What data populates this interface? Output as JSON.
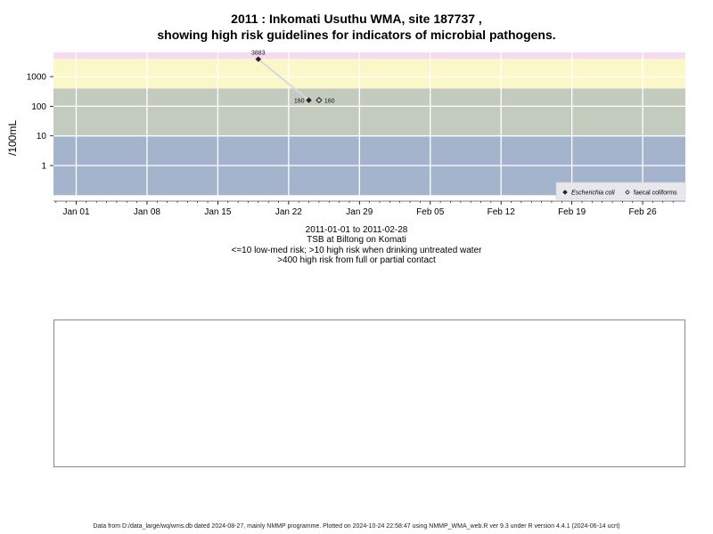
{
  "title_line1": "2011 : Inkomati Usuthu WMA, site 187737 ,",
  "title_line2": "showing high risk guidelines for indicators of microbial pathogens.",
  "subtitle": {
    "date_range": "2011-01-01 to 2011-02-28",
    "site_name": "TSB at Biltong on Komati",
    "note1": "<=10 low-med risk; >10 high risk when drinking untreated water",
    "note2": ">400 high risk from full or partial contact"
  },
  "footer": "Data from D:/data_large/wq/wms.db dated 2024-08-27, mainly NMMP programme. Plotted on 2024-10-24 22:58:47 using NMMP_WMA_web.R ver 9.3 under R version 4.4.1 (2024-06-14 ucrt)",
  "colors": {
    "band_low": "#a3b4cc",
    "band_high": "#c3cbbf",
    "band_contact": "#fbf7c8",
    "band_top": "#f7d9f3",
    "grid": "#ffffff",
    "line": "#d9d9d9",
    "point": "#222222"
  },
  "chart_data": {
    "type": "scatter",
    "ylabel": "/100mL",
    "y_scale": "log10",
    "y_ticks": [
      1,
      10,
      100,
      1000
    ],
    "y_tick_labels": [
      "1",
      "10",
      "100",
      "1000"
    ],
    "x_ticks": [
      "2011-01-01",
      "2011-01-08",
      "2011-01-15",
      "2011-01-22",
      "2011-01-29",
      "2011-02-05",
      "2011-02-12",
      "2011-02-19",
      "2011-02-26"
    ],
    "x_tick_labels": [
      "Jan 01",
      "Jan 08",
      "Jan 15",
      "Jan 22",
      "Jan 29",
      "Feb 05",
      "Feb 12",
      "Feb 19",
      "Feb 26"
    ],
    "x_range": [
      "2010-12-29",
      "2011-03-01"
    ],
    "guideline_bands": [
      {
        "from": 0.1,
        "to": 10,
        "risk": "low-med"
      },
      {
        "from": 10,
        "to": 400,
        "risk": "high risk drinking untreated water"
      },
      {
        "from": 400,
        "to": 4000,
        "risk": "high risk full or partial contact"
      }
    ],
    "series": [
      {
        "name": "Escherichia coli",
        "marker": "filled-diamond",
        "points": [
          {
            "x": "2011-01-19",
            "y": 3883,
            "label": "3883"
          },
          {
            "x": "2011-01-24",
            "y": 160,
            "label": "160"
          }
        ]
      },
      {
        "name": "faecal coliforms",
        "marker": "open-diamond",
        "points": [
          {
            "x": "2011-01-25",
            "y": 160,
            "label": "160"
          }
        ]
      }
    ],
    "legend_position": "bottom-right"
  }
}
